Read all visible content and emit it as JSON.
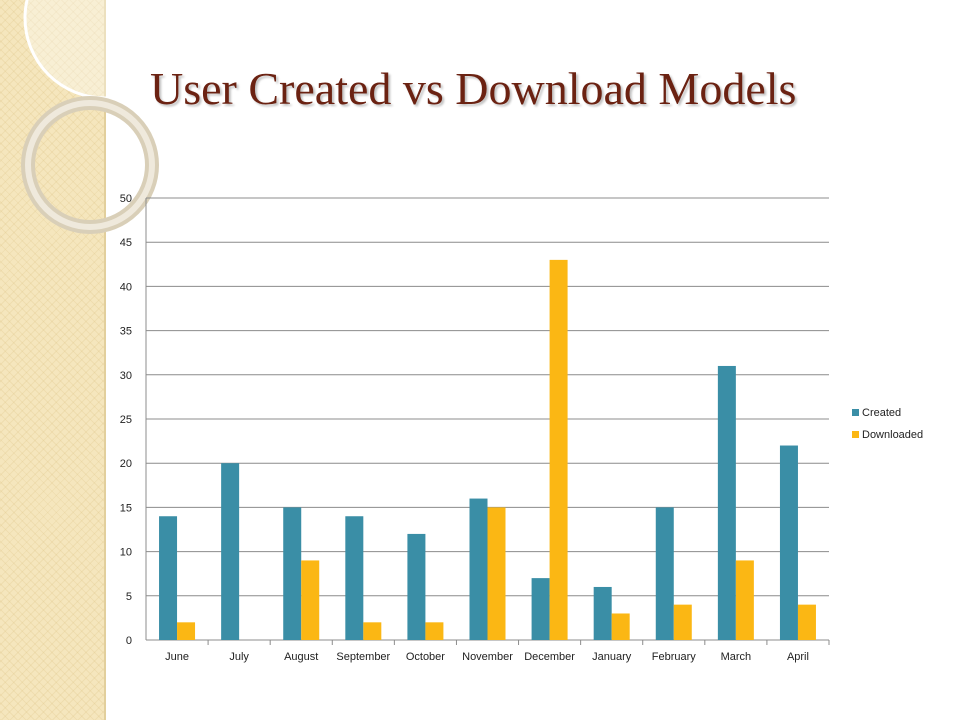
{
  "title": "User Created vs Download Models",
  "chart_data": {
    "type": "bar",
    "title": "User Created vs Download Models",
    "categories": [
      "June",
      "July",
      "August",
      "September",
      "October",
      "November",
      "December",
      "January",
      "February",
      "March",
      "April"
    ],
    "series": [
      {
        "name": "Created",
        "color": "#3a8ea6",
        "values": [
          14,
          20,
          15,
          14,
          12,
          16,
          7,
          6,
          15,
          31,
          22
        ]
      },
      {
        "name": "Downloaded",
        "color": "#fbb714",
        "values": [
          2,
          0,
          9,
          2,
          2,
          15,
          43,
          3,
          4,
          9,
          4
        ]
      }
    ],
    "ylim": [
      0,
      50
    ],
    "yticks": [
      "0",
      "5",
      "10",
      "15",
      "20",
      "25",
      "30",
      "35",
      "40",
      "45",
      "50"
    ],
    "grid": true,
    "legend_position": "right"
  }
}
